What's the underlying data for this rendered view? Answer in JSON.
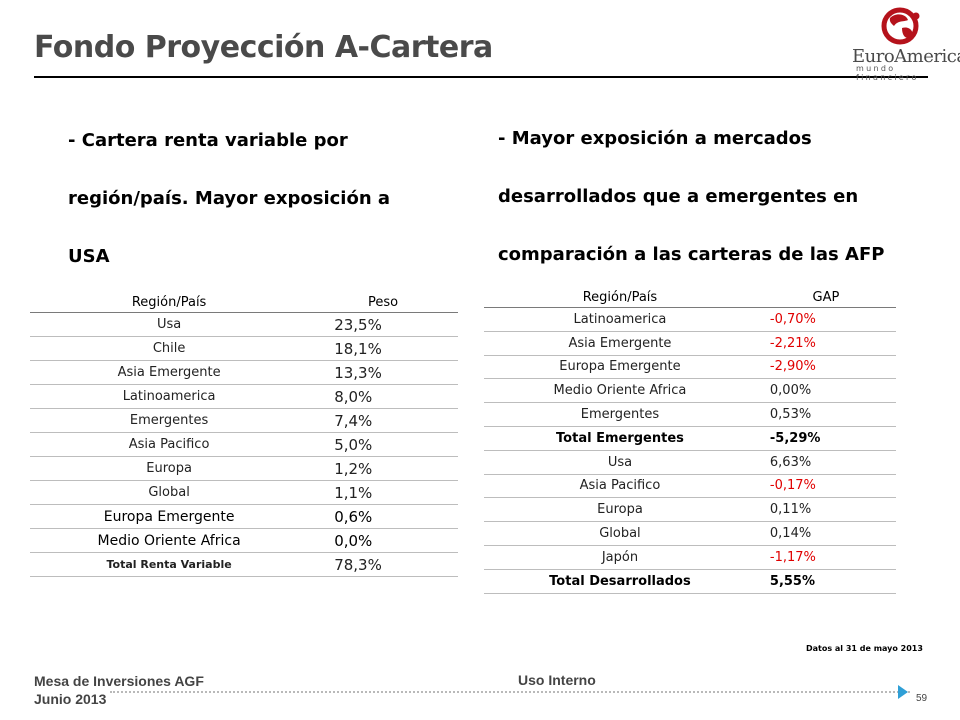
{
  "header": {
    "title": "Fondo Proyección A-Cartera",
    "logo_name": "EuroAmerica",
    "logo_sub": "mundo financiero",
    "logo_colors": {
      "mark": "#b5121b"
    }
  },
  "bullets": {
    "left": [
      "- Cartera  renta variable por",
      "región/país. Mayor exposición a",
      "USA"
    ],
    "right": [
      "- Mayor exposición a mercados",
      "desarrollados que a emergentes en",
      "comparación a las carteras de las AFP"
    ]
  },
  "table_left": {
    "headers": [
      "Región/País",
      "Peso"
    ],
    "rows": [
      {
        "region": "Usa",
        "value": "23,5%"
      },
      {
        "region": "Chile",
        "value": "18,1%"
      },
      {
        "region": "Asia Emergente",
        "value": "13,3%"
      },
      {
        "region": "Latinoamerica",
        "value": "8,0%"
      },
      {
        "region": "Emergentes",
        "value": "7,4%"
      },
      {
        "region": "Asia Pacifico",
        "value": "5,0%"
      },
      {
        "region": "Europa",
        "value": "1,2%"
      },
      {
        "region": "Global",
        "value": "1,1%"
      },
      {
        "region": "Europa Emergente",
        "value": "0,6%"
      },
      {
        "region": "Medio Oriente Africa",
        "value": "0,0%"
      }
    ],
    "total": {
      "label": "Total Renta Variable",
      "value": "78,3%"
    }
  },
  "table_right": {
    "headers": [
      "Región/País",
      "GAP"
    ],
    "rows_emergentes": [
      {
        "region": "Latinoamerica",
        "value": "-0,70%",
        "negative": true
      },
      {
        "region": "Asia Emergente",
        "value": "-2,21%",
        "negative": true
      },
      {
        "region": "Europa Emergente",
        "value": "-2,90%",
        "negative": true
      },
      {
        "region": "Medio Oriente Africa",
        "value": "0,00%",
        "negative": false
      },
      {
        "region": "Emergentes",
        "value": "0,53%",
        "negative": false
      }
    ],
    "total_emergentes": {
      "label": "Total Emergentes",
      "value": "-5,29%",
      "negative": true
    },
    "rows_desarrollados": [
      {
        "region": "Usa",
        "value": "6,63%",
        "negative": false
      },
      {
        "region": "Asia Pacifico",
        "value": "-0,17%",
        "negative": true
      },
      {
        "region": "Europa",
        "value": "0,11%",
        "negative": false
      },
      {
        "region": "Global",
        "value": "0,14%",
        "negative": false
      },
      {
        "region": "Japón",
        "value": "-1,17%",
        "negative": true
      }
    ],
    "total_desarrollados": {
      "label": "Total Desarrollados",
      "value": "5,55%",
      "negative": false
    }
  },
  "note": "Datos al 31 de mayo 2013",
  "footer": {
    "left_line1": "Mesa de Inversiones AGF",
    "left_line2": "Junio 2013",
    "center": "Uso Interno",
    "page_number": "59"
  }
}
